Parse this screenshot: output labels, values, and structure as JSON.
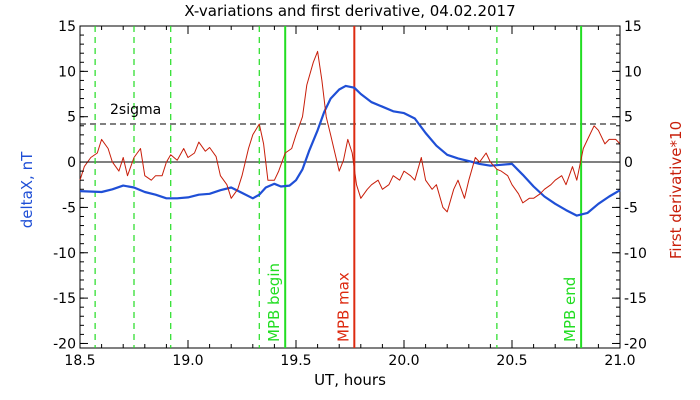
{
  "chart_data": {
    "type": "line",
    "title": "X-variations and first derivative, 04.02.2017",
    "xlabel": "UT, hours",
    "ylabel_left": "deltaX, nT",
    "ylabel_right": "First derivative*10",
    "xlim": [
      18.5,
      21.0
    ],
    "ylim": [
      -20.5,
      15
    ],
    "xticks": [
      "18.5",
      "19.0",
      "19.5",
      "20.0",
      "20.5",
      "21.0"
    ],
    "yticks": [
      "15",
      "10",
      "5",
      "0",
      "-5",
      "-10",
      "-15",
      "-20"
    ],
    "sigma_label": "2sigma",
    "sigma_level": 4.2,
    "zero_level": 0,
    "colors": {
      "deltaX": "#1f4fd6",
      "derivative": "#c81e0a",
      "mpb_boundary": "#22dd22",
      "mpb_max": "#dd2a10"
    },
    "dashed_verticals_x": [
      18.57,
      18.75,
      18.92,
      19.33,
      20.43
    ],
    "mpb_lines": [
      {
        "x": 19.45,
        "label": "MPB begin",
        "color": "#22dd22"
      },
      {
        "x": 19.77,
        "label": "MPB max",
        "color": "#dd2a10"
      },
      {
        "x": 20.82,
        "label": "MPB end",
        "color": "#22dd22"
      }
    ],
    "series": [
      {
        "name": "deltaX, nT",
        "color": "#1f4fd6",
        "x": [
          18.5,
          18.6,
          18.65,
          18.7,
          18.75,
          18.8,
          18.85,
          18.9,
          18.95,
          19.0,
          19.05,
          19.1,
          19.15,
          19.2,
          19.25,
          19.3,
          19.33,
          19.36,
          19.4,
          19.43,
          19.47,
          19.5,
          19.53,
          19.56,
          19.6,
          19.63,
          19.66,
          19.7,
          19.73,
          19.77,
          19.8,
          19.85,
          19.9,
          19.95,
          20.0,
          20.05,
          20.1,
          20.15,
          20.2,
          20.25,
          20.3,
          20.35,
          20.4,
          20.45,
          20.5,
          20.55,
          20.6,
          20.65,
          20.7,
          20.75,
          20.8,
          20.85,
          20.9,
          20.95,
          21.0
        ],
        "y": [
          -3.2,
          -3.3,
          -3.0,
          -2.6,
          -2.8,
          -3.3,
          -3.6,
          -4.0,
          -4.0,
          -3.9,
          -3.6,
          -3.5,
          -3.1,
          -2.8,
          -3.4,
          -4.0,
          -3.6,
          -2.8,
          -2.4,
          -2.7,
          -2.6,
          -2.0,
          -0.8,
          1.2,
          3.5,
          5.5,
          7.0,
          8.0,
          8.4,
          8.2,
          7.5,
          6.6,
          6.1,
          5.6,
          5.4,
          4.8,
          3.2,
          1.8,
          0.8,
          0.4,
          0.1,
          -0.2,
          -0.4,
          -0.3,
          -0.2,
          -1.4,
          -2.7,
          -3.8,
          -4.6,
          -5.3,
          -5.9,
          -5.6,
          -4.6,
          -3.8,
          -3.1
        ]
      },
      {
        "name": "First derivative*10",
        "color": "#c81e0a",
        "x": [
          18.5,
          18.52,
          18.55,
          18.58,
          18.6,
          18.63,
          18.65,
          18.68,
          18.7,
          18.72,
          18.75,
          18.78,
          18.8,
          18.83,
          18.85,
          18.88,
          18.9,
          18.92,
          18.95,
          18.98,
          19.0,
          19.03,
          19.05,
          19.08,
          19.1,
          19.13,
          19.15,
          19.18,
          19.2,
          19.23,
          19.25,
          19.28,
          19.3,
          19.33,
          19.35,
          19.37,
          19.4,
          19.42,
          19.45,
          19.48,
          19.5,
          19.53,
          19.55,
          19.58,
          19.6,
          19.62,
          19.64,
          19.66,
          19.68,
          19.7,
          19.72,
          19.74,
          19.76,
          19.78,
          19.8,
          19.83,
          19.85,
          19.88,
          19.9,
          19.93,
          19.95,
          19.98,
          20.0,
          20.03,
          20.05,
          20.08,
          20.1,
          20.13,
          20.15,
          20.18,
          20.2,
          20.23,
          20.25,
          20.28,
          20.3,
          20.33,
          20.35,
          20.38,
          20.4,
          20.43,
          20.45,
          20.48,
          20.5,
          20.53,
          20.55,
          20.58,
          20.6,
          20.63,
          20.65,
          20.68,
          20.7,
          20.73,
          20.75,
          20.78,
          20.8,
          20.83,
          20.85,
          20.88,
          20.9,
          20.93,
          20.95,
          20.98,
          21.0
        ],
        "y": [
          -2.0,
          -0.5,
          0.5,
          1.0,
          2.5,
          1.5,
          0.0,
          -1.0,
          0.5,
          -1.5,
          0.5,
          1.5,
          -1.5,
          -2.0,
          -1.5,
          -1.5,
          0.0,
          0.8,
          0.2,
          1.5,
          0.5,
          1.0,
          2.2,
          1.2,
          1.6,
          0.6,
          -1.5,
          -2.5,
          -4.0,
          -3.0,
          -1.5,
          1.5,
          3.0,
          4.2,
          2.0,
          -2.0,
          -2.0,
          -1.0,
          1.0,
          1.5,
          3.0,
          5.0,
          8.5,
          11.0,
          12.2,
          9.0,
          5.0,
          3.0,
          1.0,
          -1.0,
          0.2,
          2.5,
          1.0,
          -2.5,
          -4.0,
          -3.0,
          -2.5,
          -2.0,
          -3.0,
          -2.5,
          -1.5,
          -2.0,
          -1.0,
          -1.5,
          -2.0,
          0.5,
          -2.0,
          -3.0,
          -2.5,
          -5.0,
          -5.5,
          -3.0,
          -2.0,
          -4.0,
          -2.0,
          0.5,
          0.0,
          1.0,
          0.0,
          -0.8,
          -1.0,
          -1.5,
          -2.5,
          -3.5,
          -4.5,
          -4.0,
          -4.0,
          -3.5,
          -3.0,
          -2.5,
          -2.0,
          -1.5,
          -2.5,
          -0.5,
          -2.0,
          1.5,
          2.5,
          4.0,
          3.5,
          2.0,
          2.5,
          2.5,
          2.0
        ]
      }
    ]
  }
}
